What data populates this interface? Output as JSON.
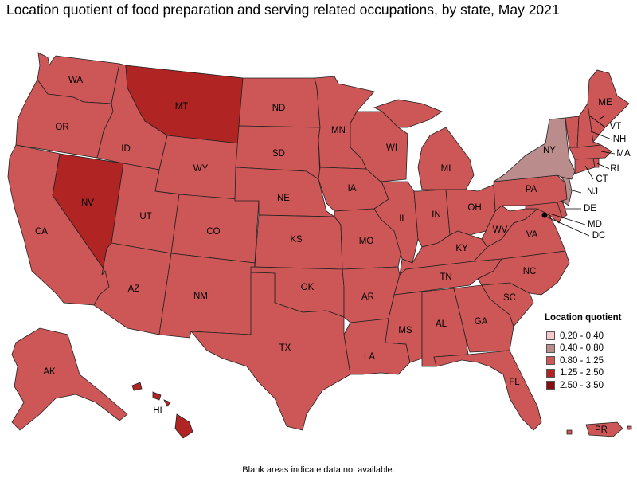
{
  "title": "Location quotient of food preparation and serving related occupations, by state, May 2021",
  "legend": {
    "title": "Location quotient",
    "items": [
      {
        "label": "0.20 - 0.40",
        "color": "#f5c9c9"
      },
      {
        "label": "0.40 - 0.80",
        "color": "#bb8c8c"
      },
      {
        "label": "0.80 - 1.25",
        "color": "#cd5656"
      },
      {
        "label": "1.25 - 2.50",
        "color": "#b02424"
      },
      {
        "label": "2.50 - 3.50",
        "color": "#8a0d0d"
      }
    ]
  },
  "footnote": "Blank areas indicate data not available.",
  "states": {
    "WA": {
      "label": "WA",
      "class": "0.80 - 1.25"
    },
    "OR": {
      "label": "OR",
      "class": "0.80 - 1.25"
    },
    "CA": {
      "label": "CA",
      "class": "0.80 - 1.25"
    },
    "NV": {
      "label": "NV",
      "class": "1.25 - 2.50"
    },
    "ID": {
      "label": "ID",
      "class": "0.80 - 1.25"
    },
    "MT": {
      "label": "MT",
      "class": "1.25 - 2.50"
    },
    "WY": {
      "label": "WY",
      "class": "0.80 - 1.25"
    },
    "UT": {
      "label": "UT",
      "class": "0.80 - 1.25"
    },
    "AZ": {
      "label": "AZ",
      "class": "0.80 - 1.25"
    },
    "CO": {
      "label": "CO",
      "class": "0.80 - 1.25"
    },
    "NM": {
      "label": "NM",
      "class": "0.80 - 1.25"
    },
    "ND": {
      "label": "ND",
      "class": "0.80 - 1.25"
    },
    "SD": {
      "label": "SD",
      "class": "0.80 - 1.25"
    },
    "NE": {
      "label": "NE",
      "class": "0.80 - 1.25"
    },
    "KS": {
      "label": "KS",
      "class": "0.80 - 1.25"
    },
    "OK": {
      "label": "OK",
      "class": "0.80 - 1.25"
    },
    "TX": {
      "label": "TX",
      "class": "0.80 - 1.25"
    },
    "MN": {
      "label": "MN",
      "class": "0.80 - 1.25"
    },
    "IA": {
      "label": "IA",
      "class": "0.80 - 1.25"
    },
    "MO": {
      "label": "MO",
      "class": "0.80 - 1.25"
    },
    "AR": {
      "label": "AR",
      "class": "0.80 - 1.25"
    },
    "LA": {
      "label": "LA",
      "class": "0.80 - 1.25"
    },
    "WI": {
      "label": "WI",
      "class": "0.80 - 1.25"
    },
    "IL": {
      "label": "IL",
      "class": "0.80 - 1.25"
    },
    "MI": {
      "label": "MI",
      "class": "0.80 - 1.25"
    },
    "IN": {
      "label": "IN",
      "class": "0.80 - 1.25"
    },
    "OH": {
      "label": "OH",
      "class": "0.80 - 1.25"
    },
    "KY": {
      "label": "KY",
      "class": "0.80 - 1.25"
    },
    "TN": {
      "label": "TN",
      "class": "0.80 - 1.25"
    },
    "MS": {
      "label": "MS",
      "class": "0.80 - 1.25"
    },
    "AL": {
      "label": "AL",
      "class": "0.80 - 1.25"
    },
    "GA": {
      "label": "GA",
      "class": "0.80 - 1.25"
    },
    "FL": {
      "label": "FL",
      "class": "0.80 - 1.25"
    },
    "SC": {
      "label": "SC",
      "class": "0.80 - 1.25"
    },
    "NC": {
      "label": "NC",
      "class": "0.80 - 1.25"
    },
    "VA": {
      "label": "VA",
      "class": "0.80 - 1.25"
    },
    "WV": {
      "label": "WV",
      "class": "0.80 - 1.25"
    },
    "PA": {
      "label": "PA",
      "class": "0.80 - 1.25"
    },
    "NY": {
      "label": "NY",
      "class": "0.40 - 0.80"
    },
    "NJ": {
      "label": "NJ",
      "class": "0.40 - 0.80"
    },
    "DE": {
      "label": "DE",
      "class": "0.80 - 1.25"
    },
    "MD": {
      "label": "MD",
      "class": "0.80 - 1.25"
    },
    "DC": {
      "label": "DC",
      "class": "0.80 - 1.25"
    },
    "CT": {
      "label": "CT",
      "class": "0.80 - 1.25"
    },
    "RI": {
      "label": "RI",
      "class": "0.80 - 1.25"
    },
    "MA": {
      "label": "MA",
      "class": "0.80 - 1.25"
    },
    "VT": {
      "label": "VT",
      "class": "0.80 - 1.25"
    },
    "NH": {
      "label": "NH",
      "class": "0.80 - 1.25"
    },
    "ME": {
      "label": "ME",
      "class": "0.80 - 1.25"
    },
    "AK": {
      "label": "AK",
      "class": "0.80 - 1.25"
    },
    "HI": {
      "label": "HI",
      "class": "1.25 - 2.50"
    },
    "PR": {
      "label": "PR",
      "class": "0.80 - 1.25"
    }
  }
}
